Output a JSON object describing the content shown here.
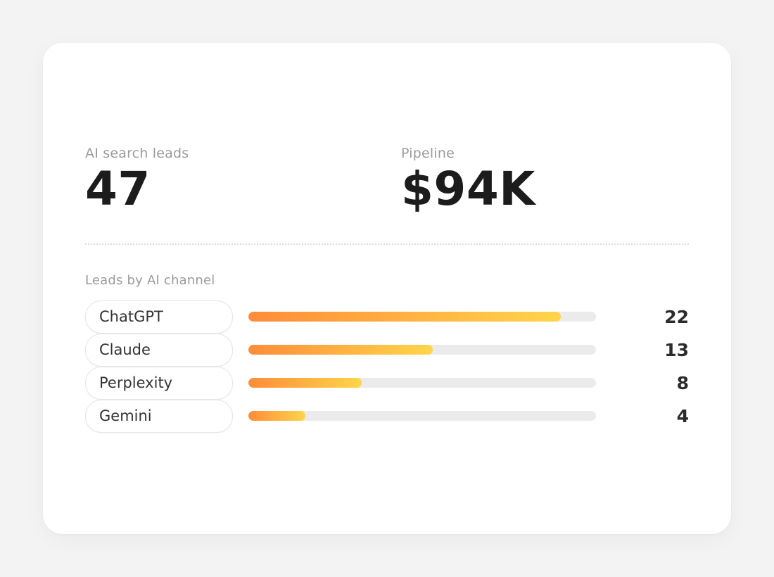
{
  "stats": {
    "leads_label": "AI search leads",
    "leads_value": "47",
    "pipeline_label": "Pipeline",
    "pipeline_value": "$94K"
  },
  "channels": {
    "title": "Leads by AI channel",
    "max_value": 24.5,
    "items": [
      {
        "label": "ChatGPT",
        "value": 22
      },
      {
        "label": "Claude",
        "value": 13
      },
      {
        "label": "Perplexity",
        "value": 8
      },
      {
        "label": "Gemini",
        "value": 4
      }
    ]
  },
  "colors": {
    "accent_start": "#ff8c3a",
    "accent_end": "#ffd54a",
    "track": "#ebebeb"
  }
}
